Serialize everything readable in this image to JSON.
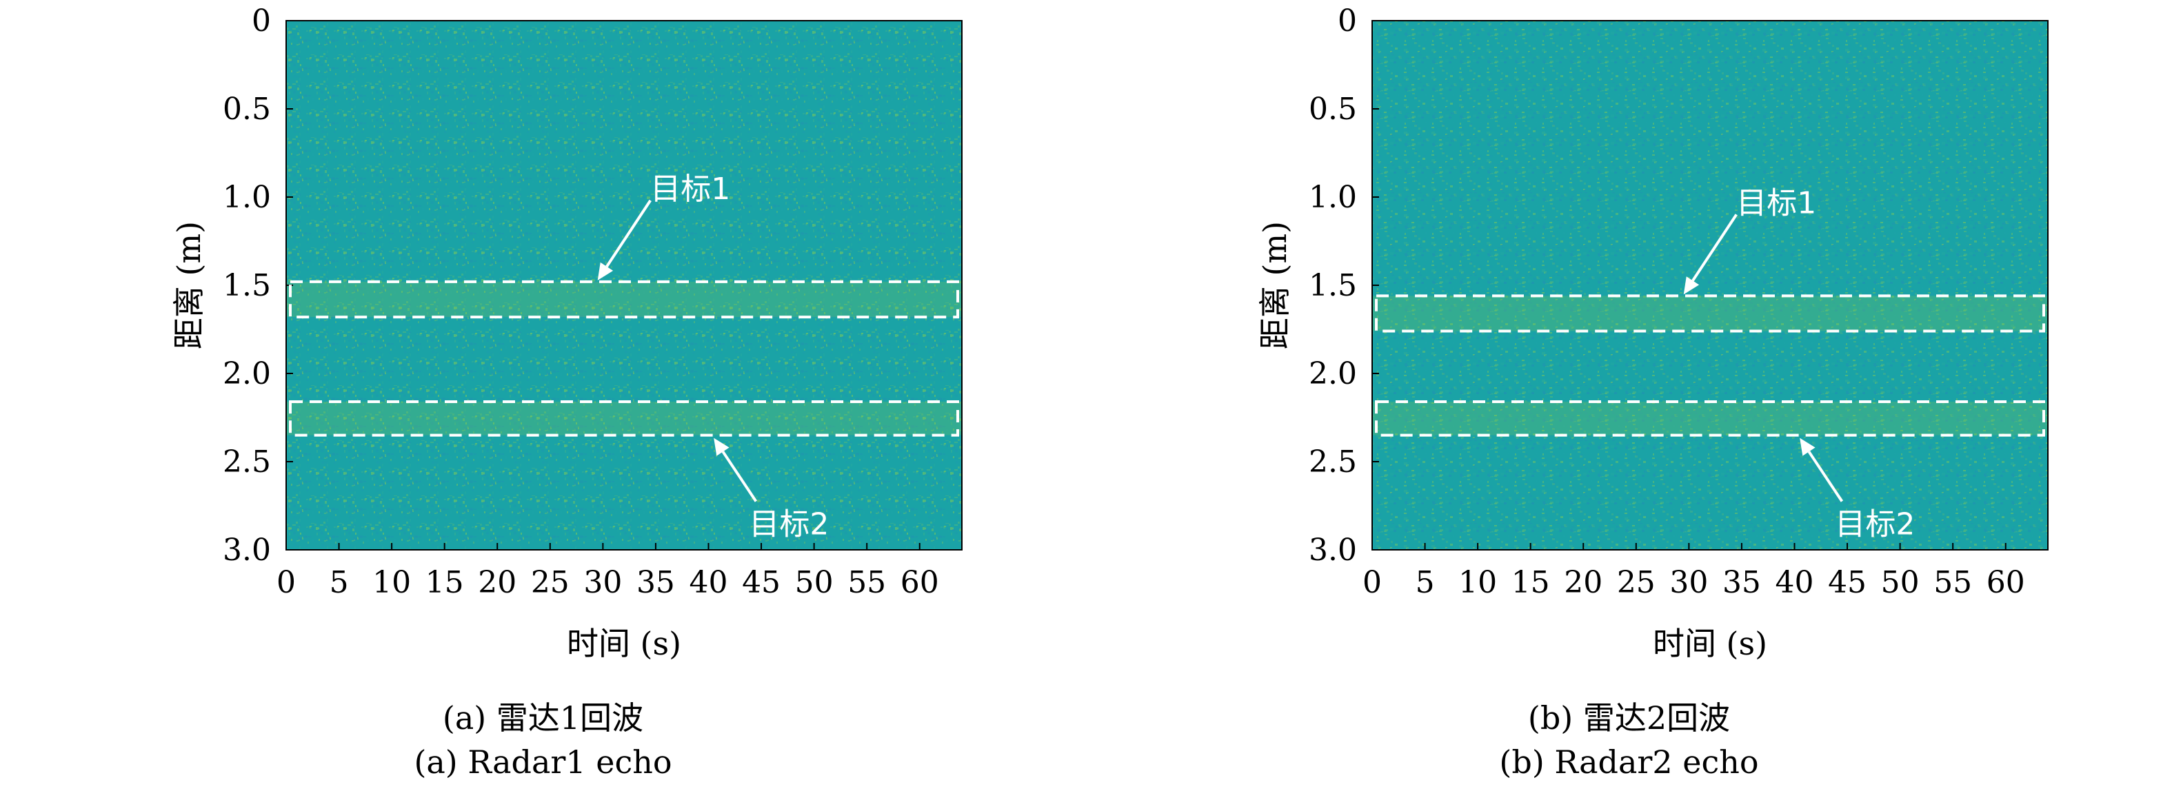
{
  "colors": {
    "heatmap_base": "#1aa3a6",
    "heatmap_low": "#1f8fb3",
    "heatmap_high": "#8fcf4a",
    "box_line": "#ffffff",
    "annotation": "#ffffff"
  },
  "chart_data": [
    {
      "type": "heatmap",
      "title": "",
      "xlabel": "时间 (s)",
      "ylabel": "距离 (m)",
      "xlim": [
        0,
        64
      ],
      "ylim": [
        3.0,
        0
      ],
      "x_ticks": [
        "0",
        "5",
        "10",
        "15",
        "20",
        "25",
        "30",
        "35",
        "40",
        "45",
        "50",
        "55",
        "60"
      ],
      "y_ticks": [
        "0",
        "0.5",
        "1.0",
        "1.5",
        "2.0",
        "2.5",
        "3.0"
      ],
      "grid": false,
      "targets": [
        {
          "label": "目标1",
          "range_m": [
            1.48,
            1.68
          ]
        },
        {
          "label": "目标2",
          "range_m": [
            2.16,
            2.35
          ]
        }
      ],
      "caption_zh": "(a) 雷达1回波",
      "caption_en": "(a) Radar1 echo"
    },
    {
      "type": "heatmap",
      "title": "",
      "xlabel": "时间 (s)",
      "ylabel": "距离 (m)",
      "xlim": [
        0,
        64
      ],
      "ylim": [
        3.0,
        0
      ],
      "x_ticks": [
        "0",
        "5",
        "10",
        "15",
        "20",
        "25",
        "30",
        "35",
        "40",
        "45",
        "50",
        "55",
        "60"
      ],
      "y_ticks": [
        "0",
        "0.5",
        "1.0",
        "1.5",
        "2.0",
        "2.5",
        "3.0"
      ],
      "grid": false,
      "targets": [
        {
          "label": "目标1",
          "range_m": [
            1.56,
            1.76
          ]
        },
        {
          "label": "目标2",
          "range_m": [
            2.16,
            2.35
          ]
        }
      ],
      "caption_zh": "(b) 雷达2回波",
      "caption_en": "(b) Radar2 echo"
    }
  ]
}
